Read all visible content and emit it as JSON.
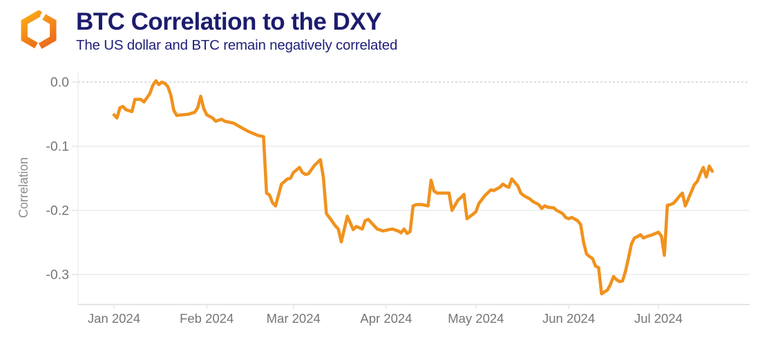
{
  "header": {
    "title": "BTC Correlation to the DXY",
    "subtitle": "The US dollar and BTC remain negatively correlated"
  },
  "colors": {
    "title_navy": "#1c1c6e",
    "subtitle_navy": "#20207a",
    "line_orange": "#f0921e",
    "logo_orange_light": "#fbad18",
    "logo_orange_dark": "#ee7418",
    "axis_text_gray": "#757575",
    "axis_title_gray": "#8c8c8c",
    "gridline_gray": "#ebebeb",
    "zero_dash_gray": "#c9c9c9"
  },
  "chart_data": {
    "type": "line",
    "title": "BTC Correlation to the DXY",
    "subtitle": "The US dollar and BTC remain negatively correlated",
    "xlabel": "",
    "ylabel": "Correlation",
    "legend": "none",
    "grid": "horizontal gridlines; zero line dashed; light left and bottom axis borders",
    "x_tick_labels": [
      "Jan 2024",
      "Feb 2024",
      "Mar 2024",
      "Apr 2024",
      "May 2024",
      "Jun 2024",
      "Jul 2024"
    ],
    "x_tick_day_offsets": [
      0,
      31,
      60,
      91,
      121,
      152,
      182
    ],
    "x_start_date": "2024-01-01",
    "x_domain_days": [
      -12,
      212.5
    ],
    "y_ticks": [
      0.0,
      -0.1,
      -0.2,
      -0.3
    ],
    "y_tick_labels": [
      "0.0",
      "-0.1",
      "-0.2",
      "-0.3"
    ],
    "ylim": [
      -0.347,
      0.016
    ],
    "series": [
      {
        "name": "BTC correlation to DXY",
        "color": "#f0921e",
        "points": [
          [
            0,
            -0.051
          ],
          [
            1,
            -0.056
          ],
          [
            2,
            -0.04
          ],
          [
            3,
            -0.038
          ],
          [
            4,
            -0.043
          ],
          [
            6,
            -0.046
          ],
          [
            7,
            -0.027
          ],
          [
            9,
            -0.027
          ],
          [
            10,
            -0.031
          ],
          [
            12,
            -0.018
          ],
          [
            13,
            -0.005
          ],
          [
            14,
            0.002
          ],
          [
            15,
            -0.004
          ],
          [
            16,
            0.0
          ],
          [
            17,
            -0.002
          ],
          [
            18,
            -0.007
          ],
          [
            19,
            -0.02
          ],
          [
            20,
            -0.044
          ],
          [
            21,
            -0.052
          ],
          [
            23,
            -0.051
          ],
          [
            25,
            -0.05
          ],
          [
            27,
            -0.047
          ],
          [
            28,
            -0.04
          ],
          [
            29,
            -0.022
          ],
          [
            30,
            -0.041
          ],
          [
            31,
            -0.051
          ],
          [
            33,
            -0.056
          ],
          [
            34,
            -0.061
          ],
          [
            36,
            -0.058
          ],
          [
            37,
            -0.061
          ],
          [
            40,
            -0.064
          ],
          [
            43,
            -0.072
          ],
          [
            45,
            -0.077
          ],
          [
            48,
            -0.083
          ],
          [
            50,
            -0.085
          ],
          [
            51,
            -0.173
          ],
          [
            52,
            -0.176
          ],
          [
            53,
            -0.188
          ],
          [
            54,
            -0.193
          ],
          [
            56,
            -0.159
          ],
          [
            58,
            -0.151
          ],
          [
            59,
            -0.15
          ],
          [
            60,
            -0.141
          ],
          [
            62,
            -0.133
          ],
          [
            63,
            -0.141
          ],
          [
            64,
            -0.144
          ],
          [
            65,
            -0.143
          ],
          [
            67,
            -0.13
          ],
          [
            69,
            -0.121
          ],
          [
            70,
            -0.148
          ],
          [
            71,
            -0.205
          ],
          [
            72,
            -0.211
          ],
          [
            74,
            -0.224
          ],
          [
            75,
            -0.229
          ],
          [
            76,
            -0.249
          ],
          [
            78,
            -0.209
          ],
          [
            80,
            -0.23
          ],
          [
            81,
            -0.225
          ],
          [
            83,
            -0.229
          ],
          [
            84,
            -0.216
          ],
          [
            85,
            -0.214
          ],
          [
            87,
            -0.224
          ],
          [
            88,
            -0.229
          ],
          [
            90,
            -0.232
          ],
          [
            92,
            -0.23
          ],
          [
            93,
            -0.229
          ],
          [
            95,
            -0.232
          ],
          [
            96,
            -0.235
          ],
          [
            97,
            -0.229
          ],
          [
            98,
            -0.236
          ],
          [
            99,
            -0.233
          ],
          [
            100,
            -0.193
          ],
          [
            101,
            -0.191
          ],
          [
            103,
            -0.191
          ],
          [
            105,
            -0.193
          ],
          [
            106,
            -0.153
          ],
          [
            107,
            -0.17
          ],
          [
            108,
            -0.173
          ],
          [
            110,
            -0.173
          ],
          [
            112,
            -0.173
          ],
          [
            113,
            -0.2
          ],
          [
            114,
            -0.192
          ],
          [
            115,
            -0.184
          ],
          [
            116,
            -0.18
          ],
          [
            117,
            -0.175
          ],
          [
            118,
            -0.213
          ],
          [
            120,
            -0.206
          ],
          [
            121,
            -0.202
          ],
          [
            122,
            -0.189
          ],
          [
            124,
            -0.177
          ],
          [
            126,
            -0.168
          ],
          [
            127,
            -0.169
          ],
          [
            129,
            -0.164
          ],
          [
            130,
            -0.159
          ],
          [
            131,
            -0.162
          ],
          [
            132,
            -0.164
          ],
          [
            133,
            -0.151
          ],
          [
            135,
            -0.162
          ],
          [
            136,
            -0.173
          ],
          [
            137,
            -0.177
          ],
          [
            139,
            -0.182
          ],
          [
            140,
            -0.186
          ],
          [
            142,
            -0.191
          ],
          [
            143,
            -0.197
          ],
          [
            144,
            -0.193
          ],
          [
            145,
            -0.195
          ],
          [
            147,
            -0.196
          ],
          [
            148,
            -0.2
          ],
          [
            150,
            -0.205
          ],
          [
            151,
            -0.211
          ],
          [
            152,
            -0.213
          ],
          [
            153,
            -0.211
          ],
          [
            155,
            -0.216
          ],
          [
            156,
            -0.222
          ],
          [
            157,
            -0.25
          ],
          [
            158,
            -0.268
          ],
          [
            159,
            -0.272
          ],
          [
            160,
            -0.275
          ],
          [
            161,
            -0.287
          ],
          [
            162,
            -0.289
          ],
          [
            163,
            -0.33
          ],
          [
            165,
            -0.324
          ],
          [
            166,
            -0.315
          ],
          [
            167,
            -0.303
          ],
          [
            168,
            -0.308
          ],
          [
            169,
            -0.311
          ],
          [
            170,
            -0.31
          ],
          [
            171,
            -0.295
          ],
          [
            172,
            -0.274
          ],
          [
            173,
            -0.252
          ],
          [
            174,
            -0.243
          ],
          [
            175,
            -0.241
          ],
          [
            176,
            -0.238
          ],
          [
            177,
            -0.243
          ],
          [
            178,
            -0.241
          ],
          [
            180,
            -0.238
          ],
          [
            181,
            -0.236
          ],
          [
            182,
            -0.234
          ],
          [
            183,
            -0.24
          ],
          [
            184,
            -0.27
          ],
          [
            185,
            -0.192
          ],
          [
            186,
            -0.191
          ],
          [
            187,
            -0.189
          ],
          [
            188,
            -0.184
          ],
          [
            189,
            -0.178
          ],
          [
            190,
            -0.173
          ],
          [
            191,
            -0.193
          ],
          [
            193,
            -0.171
          ],
          [
            194,
            -0.16
          ],
          [
            195,
            -0.155
          ],
          [
            196,
            -0.143
          ],
          [
            197,
            -0.133
          ],
          [
            198,
            -0.148
          ],
          [
            199,
            -0.131
          ],
          [
            200,
            -0.139
          ]
        ]
      }
    ]
  }
}
